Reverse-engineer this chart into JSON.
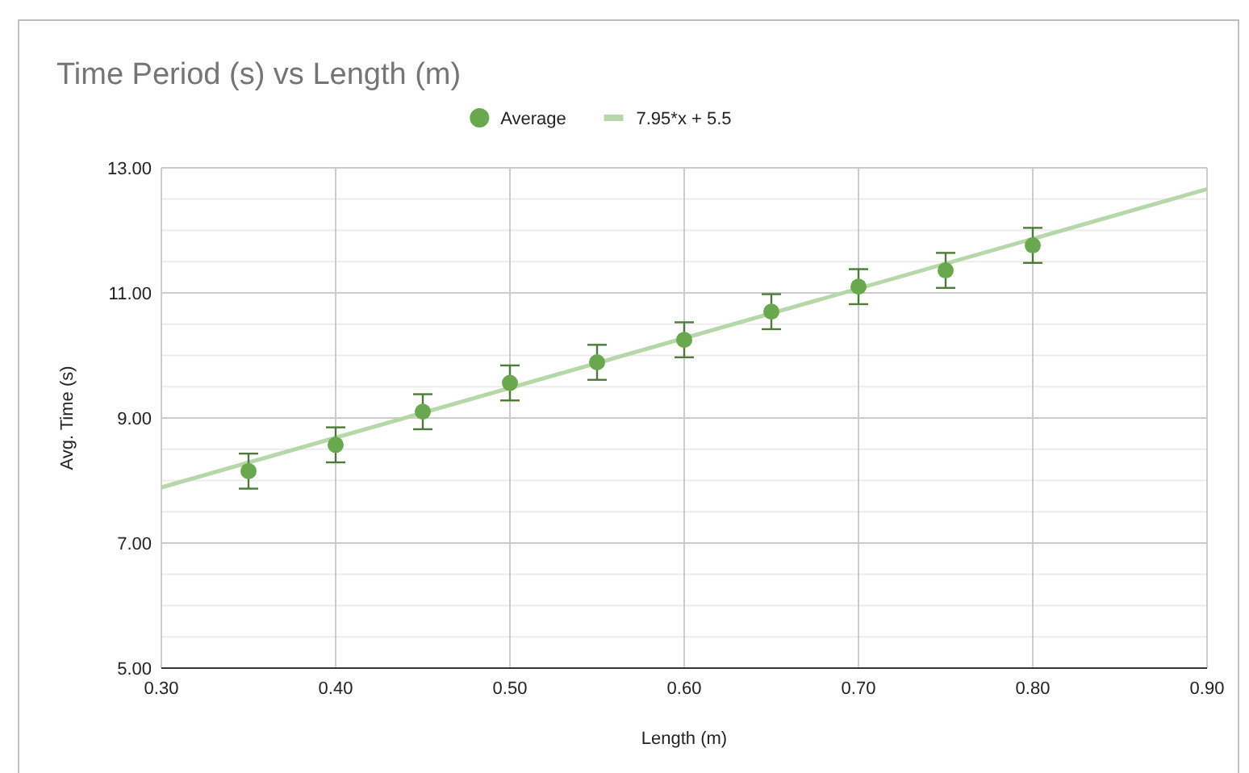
{
  "chart_data": {
    "type": "scatter",
    "title": "Time Period (s) vs Length (m)",
    "xlabel": "Length (m)",
    "ylabel": "Avg. Time (s)",
    "series": [
      {
        "name": "Average",
        "marker": "circle",
        "color": "#6aa84f",
        "x": [
          0.35,
          0.4,
          0.45,
          0.5,
          0.55,
          0.6,
          0.65,
          0.7,
          0.75,
          0.8
        ],
        "values": [
          8.15,
          8.57,
          9.1,
          9.56,
          9.89,
          10.25,
          10.7,
          11.1,
          11.36,
          11.76
        ],
        "errors": [
          0.28,
          0.28,
          0.28,
          0.28,
          0.28,
          0.28,
          0.28,
          0.28,
          0.28,
          0.28
        ]
      },
      {
        "name": "7.95*x + 5.5",
        "type": "line",
        "color": "#b6d7a8",
        "x": [
          0.3,
          0.9
        ],
        "values": [
          7.89,
          12.66
        ]
      }
    ],
    "xlim": [
      0.3,
      0.9
    ],
    "xticks": [
      {
        "value": 0.3,
        "label": "0.30"
      },
      {
        "value": 0.4,
        "label": "0.40"
      },
      {
        "value": 0.5,
        "label": "0.50"
      },
      {
        "value": 0.6,
        "label": "0.60"
      },
      {
        "value": 0.7,
        "label": "0.70"
      },
      {
        "value": 0.8,
        "label": "0.80"
      },
      {
        "value": 0.9,
        "label": "0.90"
      }
    ],
    "ylim": [
      5,
      13
    ],
    "yticks": [
      {
        "value": 5,
        "label": "5.00"
      },
      {
        "value": 5.5,
        "label": null
      },
      {
        "value": 6,
        "label": null
      },
      {
        "value": 6.5,
        "label": null
      },
      {
        "value": 7,
        "label": "7.00"
      },
      {
        "value": 7.5,
        "label": null
      },
      {
        "value": 8,
        "label": null
      },
      {
        "value": 8.5,
        "label": null
      },
      {
        "value": 9,
        "label": "9.00"
      },
      {
        "value": 9.5,
        "label": null
      },
      {
        "value": 10,
        "label": null
      },
      {
        "value": 10.5,
        "label": null
      },
      {
        "value": 11,
        "label": "11.00"
      },
      {
        "value": 11.5,
        "label": null
      },
      {
        "value": 12,
        "label": null
      },
      {
        "value": 12.5,
        "label": null
      },
      {
        "value": 13,
        "label": "13.00"
      }
    ],
    "grid": true,
    "legend": "top",
    "line_style": "solid"
  }
}
